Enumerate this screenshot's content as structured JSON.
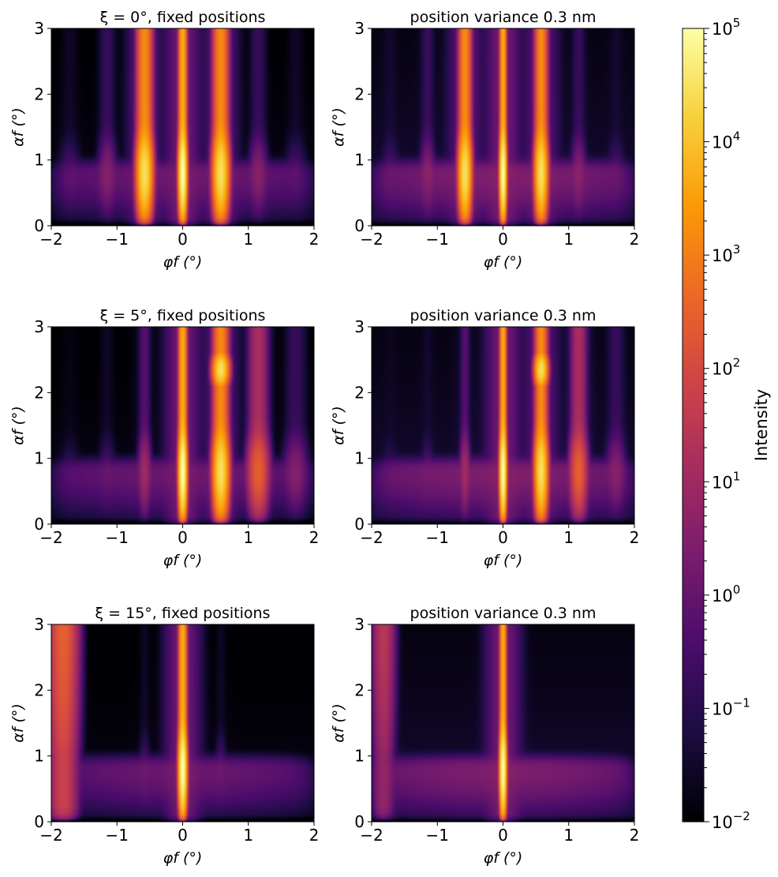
{
  "chart_data": [
    {
      "type": "heatmap",
      "title": "ξ = 0°, fixed positions",
      "xlabel": "φf (°)",
      "ylabel": "αf (°)",
      "xlim": [
        -2,
        2
      ],
      "ylim": [
        0,
        3
      ],
      "xticks": [
        "−2",
        "−1",
        "0",
        "1",
        "2"
      ],
      "yticks": [
        "0",
        "1",
        "2",
        "3"
      ],
      "tilt_deg": 0,
      "variance_nm": 0,
      "rod_x": [
        -1.72,
        -1.15,
        -0.58,
        0,
        0.58,
        1.15,
        1.72
      ],
      "rod_peak": [
        0.3,
        3,
        30000,
        100000,
        30000,
        3,
        0.3
      ],
      "yoneda_band_alpha": 0.8
    },
    {
      "type": "heatmap",
      "title": "position variance 0.3 nm",
      "xlabel": "φf (°)",
      "ylabel": "αf (°)",
      "xlim": [
        -2,
        2
      ],
      "ylim": [
        0,
        3
      ],
      "xticks": [
        "−2",
        "−1",
        "0",
        "1",
        "2"
      ],
      "yticks": [
        "0",
        "1",
        "2",
        "3"
      ],
      "tilt_deg": 0,
      "variance_nm": 0.3,
      "rod_x": [
        -1.72,
        -1.15,
        -0.58,
        0,
        0.58,
        1.15,
        1.72
      ],
      "rod_peak": [
        0.3,
        3,
        30000,
        100000,
        30000,
        3,
        0.3
      ],
      "yoneda_band_alpha": 0.8
    },
    {
      "type": "heatmap",
      "title": "ξ = 5°, fixed positions",
      "xlabel": "φf (°)",
      "ylabel": "αf (°)",
      "xlim": [
        -2,
        2
      ],
      "ylim": [
        0,
        3
      ],
      "xticks": [
        "−2",
        "−1",
        "0",
        "1",
        "2"
      ],
      "yticks": [
        "0",
        "1",
        "2",
        "3"
      ],
      "tilt_deg": 5,
      "variance_nm": 0,
      "rod_x": [
        -1.72,
        -1.15,
        -0.58,
        0,
        0.58,
        1.15,
        1.72
      ],
      "rod_peak": [
        0.1,
        0.3,
        10,
        100000,
        30000,
        300,
        3
      ],
      "yoneda_band_alpha": 0.8
    },
    {
      "type": "heatmap",
      "title": "position variance 0.3 nm",
      "xlabel": "φf (°)",
      "ylabel": "αf (°)",
      "xlim": [
        -2,
        2
      ],
      "ylim": [
        0,
        3
      ],
      "xticks": [
        "−2",
        "−1",
        "0",
        "1",
        "2"
      ],
      "yticks": [
        "0",
        "1",
        "2",
        "3"
      ],
      "tilt_deg": 5,
      "variance_nm": 0.3,
      "rod_x": [
        -1.72,
        -1.15,
        -0.58,
        0,
        0.58,
        1.15,
        1.72
      ],
      "rod_peak": [
        0.1,
        0.3,
        10,
        100000,
        30000,
        300,
        3
      ],
      "yoneda_band_alpha": 0.8
    },
    {
      "type": "heatmap",
      "title": "ξ = 15°, fixed positions",
      "xlabel": "φf (°)",
      "ylabel": "αf (°)",
      "xlim": [
        -2,
        2
      ],
      "ylim": [
        0,
        3
      ],
      "xticks": [
        "−2",
        "−1",
        "0",
        "1",
        "2"
      ],
      "yticks": [
        "0",
        "1",
        "2",
        "3"
      ],
      "tilt_deg": 15,
      "variance_nm": 0,
      "rod_x": [
        -1.82,
        -0.58,
        0,
        0.58
      ],
      "rod_peak": [
        300,
        0.3,
        100000,
        0.3
      ],
      "yoneda_band_alpha": 0.8
    },
    {
      "type": "heatmap",
      "title": "position variance 0.3 nm",
      "xlabel": "φf (°)",
      "ylabel": "αf (°)",
      "xlim": [
        -2,
        2
      ],
      "ylim": [
        0,
        3
      ],
      "xticks": [
        "−2",
        "−1",
        "0",
        "1",
        "2"
      ],
      "yticks": [
        "0",
        "1",
        "2",
        "3"
      ],
      "tilt_deg": 15,
      "variance_nm": 0.3,
      "rod_x": [
        -1.82,
        0
      ],
      "rod_peak": [
        30,
        100000
      ],
      "yoneda_band_alpha": 0.8
    }
  ],
  "colorbar": {
    "label": "Intensity",
    "scale": "log",
    "range": [
      0.01,
      100000
    ],
    "colormap": "inferno",
    "ticks": [
      {
        "base": "10",
        "exp": "5"
      },
      {
        "base": "10",
        "exp": "4"
      },
      {
        "base": "10",
        "exp": "3"
      },
      {
        "base": "10",
        "exp": "2"
      },
      {
        "base": "10",
        "exp": "1"
      },
      {
        "base": "10",
        "exp": "0"
      },
      {
        "base": "10",
        "exp": "−1"
      },
      {
        "base": "10",
        "exp": "−2"
      }
    ],
    "colors": [
      "#000004",
      "#1b0c41",
      "#4a0c6b",
      "#781c6d",
      "#a52c60",
      "#cf4446",
      "#ed6925",
      "#fb9b06",
      "#f7d13d",
      "#fcffa4"
    ]
  }
}
